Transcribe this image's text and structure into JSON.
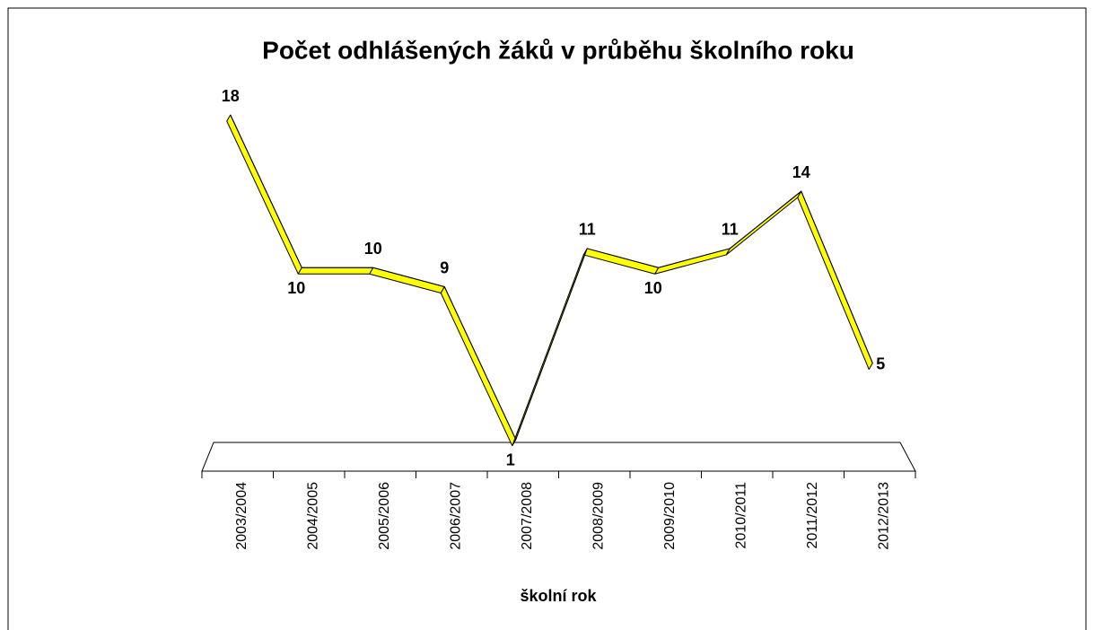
{
  "chart_data": {
    "type": "line3d",
    "title": "Počet odhlášených žáků v průběhu školního roku",
    "x_label": "školní rok",
    "categories": [
      "2003/2004",
      "2004/2005",
      "2005/2006",
      "2006/2007",
      "2007/2008",
      "2008/2009",
      "2009/2010",
      "2010/2011",
      "2011/2012",
      "2012/2013"
    ],
    "series": [
      {
        "name": "Počet odhlášených žáků",
        "color": "#ffff00",
        "values": [
          18,
          10,
          10,
          9,
          1,
          11,
          10,
          11,
          14,
          5
        ]
      }
    ],
    "ylim": [
      0,
      18
    ]
  }
}
